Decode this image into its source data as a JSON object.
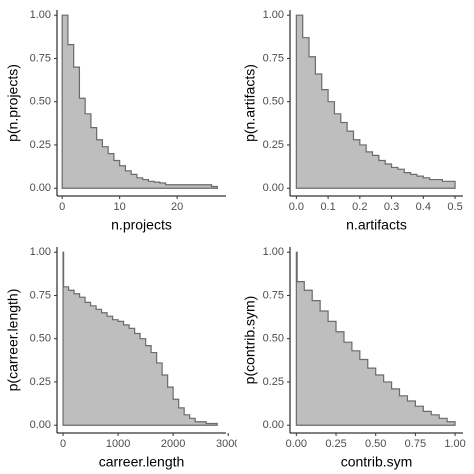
{
  "chart_data": [
    {
      "type": "step",
      "x_label": "n.projects",
      "y_label": "p(n.projects)",
      "color": "#bebebe",
      "line_color": "#6b6b6b",
      "x": [
        0,
        1,
        2,
        3,
        4,
        5,
        6,
        7,
        8,
        9,
        10,
        11,
        12,
        13,
        14,
        15,
        16,
        17,
        18,
        19,
        20,
        21,
        22,
        23,
        24,
        25,
        26,
        27
      ],
      "values": [
        1.0,
        0.83,
        0.7,
        0.52,
        0.43,
        0.35,
        0.28,
        0.24,
        0.2,
        0.16,
        0.13,
        0.1,
        0.08,
        0.06,
        0.05,
        0.04,
        0.035,
        0.03,
        0.02,
        0.02,
        0.02,
        0.02,
        0.02,
        0.02,
        0.02,
        0.02,
        0.01,
        0.01
      ],
      "xlim": [
        -0.9,
        28.5
      ],
      "xticks": [
        0,
        10,
        20
      ],
      "ylim": [
        -0.045,
        1.03
      ],
      "yticks": [
        {
          "value": 0,
          "label": "0.00"
        },
        0.25,
        {
          "value": 0.5,
          "label": "0.50"
        },
        0.75,
        {
          "value": 1,
          "label": "1.00"
        }
      ]
    },
    {
      "type": "step",
      "x_label": "n.artifacts",
      "y_label": "p(n.artifacts)",
      "color": "#bebebe",
      "line_color": "#6b6b6b",
      "x": [
        0,
        0.02,
        0.04,
        0.06,
        0.08,
        0.1,
        0.12,
        0.14,
        0.16,
        0.18,
        0.2,
        0.22,
        0.24,
        0.26,
        0.28,
        0.3,
        0.32,
        0.34,
        0.36,
        0.38,
        0.4,
        0.42,
        0.44,
        0.46,
        0.48,
        0.5
      ],
      "values": [
        1.0,
        0.87,
        0.76,
        0.66,
        0.57,
        0.5,
        0.43,
        0.38,
        0.33,
        0.28,
        0.25,
        0.21,
        0.19,
        0.16,
        0.14,
        0.12,
        0.11,
        0.09,
        0.08,
        0.07,
        0.06,
        0.05,
        0.05,
        0.04,
        0.04,
        0.03
      ],
      "xlim": [
        -0.02,
        0.525
      ],
      "xticks": [
        {
          "value": 0,
          "label": "0.0"
        },
        0.1,
        0.2,
        0.3,
        0.4,
        0.5
      ],
      "ylim": [
        -0.045,
        1.03
      ],
      "yticks": [
        {
          "value": 0,
          "label": "0.00"
        },
        0.25,
        {
          "value": 0.5,
          "label": "0.50"
        },
        0.75,
        {
          "value": 1,
          "label": "1.00"
        }
      ]
    },
    {
      "type": "step",
      "x_label": "carreer.length",
      "y_label": "p(carreer.length)",
      "color": "#bebebe",
      "line_color": "#6b6b6b",
      "x": [
        0,
        10,
        100,
        200,
        300,
        400,
        500,
        600,
        700,
        800,
        900,
        1000,
        1100,
        1200,
        1300,
        1400,
        1500,
        1600,
        1700,
        1800,
        1900,
        2000,
        2100,
        2200,
        2300,
        2400,
        2500,
        2600,
        2700,
        2800
      ],
      "values": [
        1.0,
        0.8,
        0.78,
        0.76,
        0.74,
        0.71,
        0.69,
        0.67,
        0.65,
        0.63,
        0.61,
        0.6,
        0.58,
        0.56,
        0.53,
        0.5,
        0.46,
        0.42,
        0.36,
        0.29,
        0.22,
        0.15,
        0.1,
        0.06,
        0.04,
        0.02,
        0.02,
        0.01,
        0.01,
        0.0
      ],
      "xlim": [
        -110,
        2960
      ],
      "xticks": [
        0,
        1000,
        2000,
        3000
      ],
      "ylim": [
        -0.045,
        1.03
      ],
      "yticks": [
        {
          "value": 0,
          "label": "0.00"
        },
        0.25,
        {
          "value": 0.5,
          "label": "0.50"
        },
        0.75,
        {
          "value": 1,
          "label": "1.00"
        }
      ]
    },
    {
      "type": "step",
      "x_label": "contrib.sym",
      "y_label": "p(contrib.sym)",
      "color": "#bebebe",
      "line_color": "#6b6b6b",
      "x": [
        0,
        0.005,
        0.05,
        0.1,
        0.15,
        0.2,
        0.25,
        0.3,
        0.35,
        0.4,
        0.45,
        0.5,
        0.55,
        0.6,
        0.65,
        0.7,
        0.75,
        0.8,
        0.85,
        0.9,
        0.95,
        1.0
      ],
      "values": [
        1.0,
        0.83,
        0.78,
        0.72,
        0.66,
        0.6,
        0.54,
        0.48,
        0.43,
        0.38,
        0.33,
        0.29,
        0.25,
        0.21,
        0.17,
        0.14,
        0.11,
        0.08,
        0.06,
        0.04,
        0.02,
        0.0
      ],
      "xlim": [
        -0.04,
        1.05
      ],
      "xticks": [
        {
          "value": 0,
          "label": "0.00"
        },
        0.25,
        {
          "value": 0.5,
          "label": "0.50"
        },
        0.75,
        {
          "value": 1,
          "label": "1.00"
        }
      ],
      "ylim": [
        -0.045,
        1.03
      ],
      "yticks": [
        {
          "value": 0,
          "label": "0.00"
        },
        0.25,
        {
          "value": 0.5,
          "label": "0.50"
        },
        0.75,
        {
          "value": 1,
          "label": "1.00"
        }
      ]
    }
  ]
}
